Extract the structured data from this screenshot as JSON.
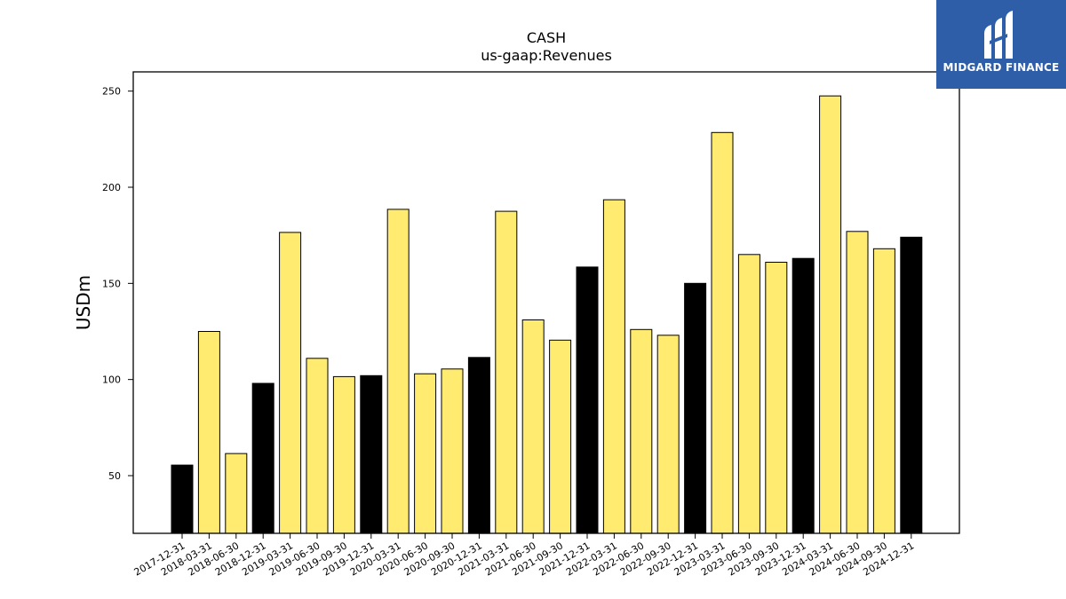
{
  "logo": {
    "text": "MIDGARD FINANCE",
    "background": "#2f5ea8"
  },
  "chart_data": {
    "type": "bar",
    "title": "CASH",
    "subtitle": "us-gaap:Revenues",
    "xlabel": "",
    "ylabel": "USDm",
    "ylim": [
      20,
      260
    ],
    "yticks": [
      50,
      100,
      150,
      200,
      250
    ],
    "grid": false,
    "categories": [
      "2017-12-31",
      "2018-03-31",
      "2018-06-30",
      "2018-12-31",
      "2019-03-31",
      "2019-06-30",
      "2019-09-30",
      "2019-12-31",
      "2020-03-31",
      "2020-06-30",
      "2020-09-30",
      "2020-12-31",
      "2021-03-31",
      "2021-06-30",
      "2021-09-30",
      "2021-12-31",
      "2022-03-31",
      "2022-06-30",
      "2022-09-30",
      "2022-12-31",
      "2023-03-31",
      "2023-06-30",
      "2023-09-30",
      "2023-12-31",
      "2024-03-31",
      "2024-06-30",
      "2024-09-30",
      "2024-12-31"
    ],
    "values": [
      55.5,
      125,
      61.5,
      98,
      176.5,
      111,
      101.5,
      102,
      188.5,
      103,
      105.5,
      111.5,
      187.5,
      131,
      120.5,
      158.5,
      193.5,
      126,
      123,
      150,
      228.5,
      165,
      161,
      163,
      247.5,
      177,
      168,
      174
    ],
    "bar_kind": [
      "annual",
      "quarter",
      "quarter",
      "annual",
      "quarter",
      "quarter",
      "quarter",
      "annual",
      "quarter",
      "quarter",
      "quarter",
      "annual",
      "quarter",
      "quarter",
      "quarter",
      "annual",
      "quarter",
      "quarter",
      "quarter",
      "annual",
      "quarter",
      "quarter",
      "quarter",
      "annual",
      "quarter",
      "quarter",
      "quarter",
      "annual"
    ],
    "colors": {
      "annual": "#000000",
      "quarter": "#ffeb70",
      "edge": "#000000"
    }
  }
}
